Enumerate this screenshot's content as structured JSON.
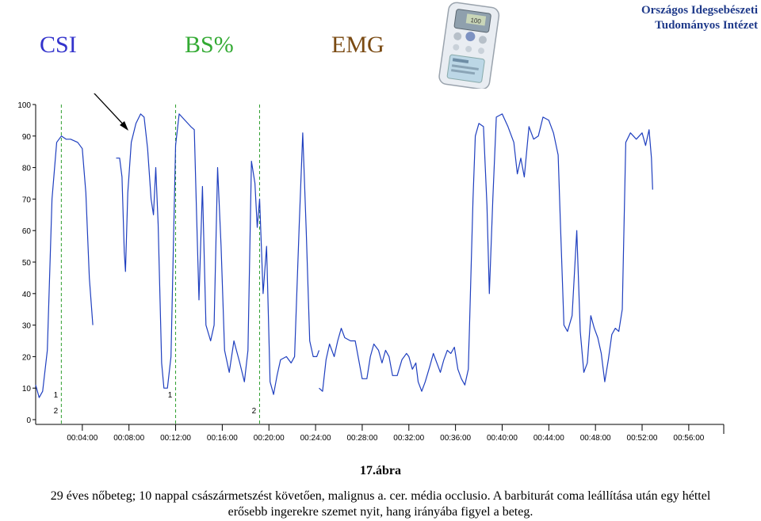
{
  "header": {
    "csi_label": "CSI",
    "bs_label": "BS%",
    "emg_label": "EMG",
    "institute_line1": "Országos Idegsebészeti",
    "institute_line2": "Tudományos Intézet",
    "device_display_value": "100"
  },
  "caption": {
    "title": "17.ábra",
    "line1": "29 éves nőbeteg; 10 nappal császármetszést követően, malignus a. cer. média occlusio. A barbiturát coma leállítása után egy héttel",
    "line2": "erősebb ingerekre szemet nyit, hang irányába figyel a beteg."
  },
  "colors": {
    "csi": "#3333cc",
    "bs": "#33aa33",
    "emg": "#7a4a12",
    "series_line": "#1f3fbf",
    "marker_line": "#2e9e2e",
    "institute": "#1f3a8a"
  },
  "chart_data": {
    "type": "line",
    "series": [
      {
        "segments": [
          [
            [
              0,
              11
            ],
            [
              0.3,
              7
            ],
            [
              0.6,
              9
            ],
            [
              1.0,
              22
            ],
            [
              1.4,
              70
            ],
            [
              1.8,
              88
            ],
            [
              2.2,
              90
            ],
            [
              2.6,
              89
            ],
            [
              3.0,
              89
            ],
            [
              3.6,
              88
            ],
            [
              4.0,
              86
            ],
            [
              4.3,
              72
            ],
            [
              4.6,
              45
            ],
            [
              4.9,
              30
            ]
          ],
          [
            [
              6.9,
              83
            ],
            [
              7.2,
              83
            ],
            [
              7.4,
              77
            ],
            [
              7.6,
              53
            ],
            [
              7.7,
              47
            ],
            [
              7.9,
              72
            ],
            [
              8.2,
              88
            ],
            [
              8.6,
              94
            ],
            [
              9.0,
              97
            ],
            [
              9.3,
              96
            ],
            [
              9.6,
              86
            ],
            [
              9.9,
              70
            ],
            [
              10.1,
              65
            ],
            [
              10.3,
              80
            ],
            [
              10.5,
              62
            ],
            [
              10.8,
              18
            ],
            [
              11.0,
              10
            ],
            [
              11.3,
              10
            ],
            [
              11.6,
              20
            ],
            [
              12.0,
              87
            ],
            [
              12.3,
              97
            ],
            [
              12.8,
              95
            ],
            [
              13.3,
              93
            ],
            [
              13.6,
              92
            ],
            [
              13.8,
              65
            ],
            [
              14.0,
              38
            ],
            [
              14.3,
              74
            ],
            [
              14.6,
              30
            ],
            [
              15.0,
              25
            ],
            [
              15.3,
              30
            ],
            [
              15.6,
              80
            ],
            [
              15.9,
              55
            ],
            [
              16.2,
              22
            ],
            [
              16.6,
              15
            ],
            [
              17.0,
              25
            ],
            [
              17.5,
              18
            ],
            [
              17.9,
              12
            ],
            [
              18.2,
              22
            ],
            [
              18.5,
              82
            ],
            [
              18.8,
              75
            ],
            [
              19.0,
              61
            ],
            [
              19.2,
              70
            ],
            [
              19.5,
              40
            ],
            [
              19.8,
              55
            ],
            [
              20.1,
              12
            ],
            [
              20.4,
              8
            ],
            [
              20.7,
              14
            ],
            [
              21.0,
              19
            ],
            [
              21.5,
              20
            ],
            [
              21.9,
              18
            ],
            [
              22.2,
              20
            ],
            [
              22.6,
              62
            ],
            [
              22.9,
              91
            ],
            [
              23.2,
              60
            ],
            [
              23.5,
              25
            ],
            [
              23.8,
              20
            ],
            [
              24.1,
              20
            ],
            [
              24.3,
              22
            ]
          ],
          [
            [
              24.3,
              10
            ],
            [
              24.6,
              9
            ],
            [
              24.9,
              19
            ],
            [
              25.2,
              24
            ],
            [
              25.6,
              20
            ],
            [
              25.9,
              25
            ],
            [
              26.2,
              29
            ],
            [
              26.5,
              26
            ],
            [
              27.0,
              25
            ],
            [
              27.4,
              25
            ],
            [
              27.7,
              19
            ],
            [
              28.0,
              13
            ],
            [
              28.4,
              13
            ],
            [
              28.7,
              20
            ],
            [
              29.0,
              24
            ],
            [
              29.4,
              22
            ],
            [
              29.7,
              18
            ],
            [
              30.0,
              22
            ],
            [
              30.3,
              20
            ],
            [
              30.6,
              14
            ],
            [
              31.0,
              14
            ],
            [
              31.4,
              19
            ],
            [
              31.8,
              21
            ],
            [
              32.0,
              20
            ],
            [
              32.3,
              16
            ],
            [
              32.6,
              18
            ],
            [
              32.8,
              12
            ],
            [
              33.1,
              9
            ],
            [
              33.4,
              12
            ],
            [
              33.8,
              17
            ],
            [
              34.1,
              21
            ],
            [
              34.4,
              18
            ],
            [
              34.7,
              15
            ],
            [
              35.0,
              19
            ],
            [
              35.3,
              22
            ],
            [
              35.6,
              21
            ],
            [
              35.9,
              23
            ],
            [
              36.2,
              16
            ],
            [
              36.5,
              13
            ],
            [
              36.8,
              11
            ],
            [
              37.1,
              16
            ],
            [
              37.5,
              70
            ],
            [
              37.7,
              90
            ],
            [
              38.0,
              94
            ],
            [
              38.4,
              93
            ],
            [
              38.7,
              68
            ],
            [
              38.9,
              40
            ],
            [
              39.2,
              70
            ],
            [
              39.5,
              96
            ],
            [
              40.0,
              97
            ],
            [
              40.5,
              93
            ],
            [
              41.0,
              88
            ],
            [
              41.3,
              78
            ],
            [
              41.6,
              83
            ],
            [
              41.9,
              77
            ],
            [
              42.3,
              93
            ],
            [
              42.7,
              89
            ],
            [
              43.1,
              90
            ],
            [
              43.5,
              96
            ],
            [
              44.0,
              95
            ],
            [
              44.4,
              91
            ],
            [
              44.8,
              84
            ],
            [
              45.0,
              62
            ],
            [
              45.3,
              30
            ],
            [
              45.6,
              28
            ],
            [
              46.0,
              33
            ],
            [
              46.4,
              60
            ],
            [
              46.7,
              28
            ],
            [
              47.0,
              15
            ],
            [
              47.3,
              18
            ],
            [
              47.6,
              33
            ],
            [
              47.9,
              29
            ],
            [
              48.2,
              26
            ],
            [
              48.5,
              21
            ],
            [
              48.8,
              12
            ],
            [
              49.1,
              19
            ],
            [
              49.4,
              27
            ],
            [
              49.7,
              29
            ],
            [
              50.0,
              28
            ],
            [
              50.3,
              35
            ],
            [
              50.6,
              88
            ],
            [
              51.0,
              91
            ],
            [
              51.5,
              89
            ],
            [
              52.0,
              91
            ],
            [
              52.3,
              87
            ],
            [
              52.6,
              92
            ],
            [
              52.8,
              83
            ],
            [
              52.9,
              73
            ]
          ]
        ]
      }
    ],
    "x_tick_labels": [
      "00:04:00",
      "00:08:00",
      "00:12:00",
      "00:16:00",
      "00:20:00",
      "00:24:00",
      "00:28:00",
      "00:32:00",
      "00:36:00",
      "00:40:00",
      "00:44:00",
      "00:48:00",
      "00:52:00",
      "00:56:00"
    ],
    "x_tick_minutes": [
      4,
      8,
      12,
      16,
      20,
      24,
      28,
      32,
      36,
      40,
      44,
      48,
      52,
      56
    ],
    "y_tick_labels": [
      "100",
      "90",
      "80",
      "70",
      "60",
      "50",
      "40",
      "30",
      "20",
      "10",
      "0"
    ],
    "xlim": [
      0,
      59
    ],
    "ylim": [
      0,
      100
    ],
    "markers": [
      {
        "minute": 2.2,
        "labels": [
          "1",
          "2"
        ]
      },
      {
        "minute": 12.0,
        "labels": [
          "1"
        ]
      },
      {
        "minute": 19.2,
        "labels": [
          "2"
        ]
      }
    ]
  }
}
